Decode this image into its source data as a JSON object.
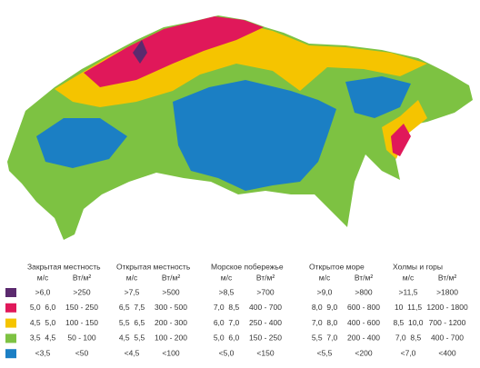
{
  "legend": {
    "colors": [
      "#5b2a6e",
      "#e0185a",
      "#f5c400",
      "#7dc242",
      "#1b7fc4"
    ],
    "columns": [
      {
        "title": "Закрытая местность",
        "unit1": "м/с",
        "unit2": "Вт/м²",
        "rows": [
          [
            ">6,0",
            ">250"
          ],
          [
            "5,0  6,0",
            "150 - 250"
          ],
          [
            "4,5  5,0",
            "100 - 150"
          ],
          [
            "3,5  4,5",
            "50 - 100"
          ],
          [
            "<3,5",
            "<50"
          ]
        ]
      },
      {
        "title": "Открытая местность",
        "unit1": "м/с",
        "unit2": "Вт/м²",
        "rows": [
          [
            ">7,5",
            ">500"
          ],
          [
            "6,5  7,5",
            "300 - 500"
          ],
          [
            "5,5  6,5",
            "200 - 300"
          ],
          [
            "4,5  5,5",
            "100 - 200"
          ],
          [
            "<4,5",
            "<100"
          ]
        ]
      },
      {
        "title": "Морское побережье",
        "unit1": "м/с",
        "unit2": "Вт/м²",
        "rows": [
          [
            ">8,5",
            ">700"
          ],
          [
            "7,0  8,5",
            "400 - 700"
          ],
          [
            "6,0  7,0",
            "250 - 400"
          ],
          [
            "5,0  6,0",
            "150 - 250"
          ],
          [
            "<5,0",
            "<150"
          ]
        ]
      },
      {
        "title": "Открытое море",
        "unit1": "м/с",
        "unit2": "Вт/м²",
        "rows": [
          [
            ">9,0",
            ">800"
          ],
          [
            "8,0  9,0",
            "600 - 800"
          ],
          [
            "7,0  8,0",
            "400 - 600"
          ],
          [
            "5,5  7,0",
            "200 - 400"
          ],
          [
            "<5,5",
            "<200"
          ]
        ]
      },
      {
        "title": "Холмы и горы",
        "unit1": "м/с",
        "unit2": "Вт/м²",
        "rows": [
          [
            ">11,5",
            ">1800"
          ],
          [
            "10  11,5",
            "1200 - 1800"
          ],
          [
            "8,5  10,0",
            "700 - 1200"
          ],
          [
            "7,0  8,5",
            "400 - 700"
          ],
          [
            "<7,0",
            "<400"
          ]
        ]
      }
    ]
  }
}
